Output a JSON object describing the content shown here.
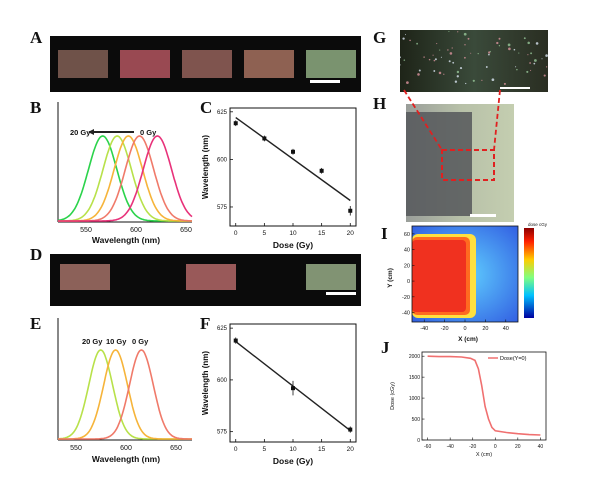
{
  "panel_labels": {
    "A": "A",
    "B": "B",
    "C": "C",
    "D": "D",
    "E": "E",
    "F": "F",
    "G": "G",
    "H": "H",
    "I": "I",
    "J": "J"
  },
  "colors": {
    "strip": "#0b0b0b",
    "fit_line": "#222222",
    "red_roi": "#e02020",
    "jet_hot": "#f0311f",
    "jet_cold": "#2233d8"
  },
  "strip_A": {
    "film_colors": [
      "#7a5a50",
      "#a8505a",
      "#8c5c55",
      "#9c6a5a",
      "#86a27a"
    ],
    "has_scale_bar": true
  },
  "strip_D": {
    "film_colors": [
      "#9a6a62",
      "#a86262",
      "#8ea27e"
    ],
    "has_scale_bar": true
  },
  "panel_B": {
    "arrow_start": "20 Gy",
    "arrow_end": "0 Gy",
    "xlabel": "Wavelength (nm)",
    "xticks": [
      "550",
      "600",
      "650"
    ]
  },
  "panel_E": {
    "annotations": [
      "20 Gy",
      "10 Gy",
      "0 Gy"
    ],
    "xlabel": "Wavelength (nm)",
    "xticks": [
      "550",
      "600",
      "650"
    ]
  },
  "panel_I": {
    "ylabel": "Y (cm)",
    "xlabel": "X (cm)",
    "yticks": [
      "60",
      "40",
      "20",
      "0",
      "-20",
      "-40"
    ],
    "xticks": [
      "-40",
      "-20",
      "0",
      "20",
      "40"
    ],
    "colorbar_title": "dose cGy"
  },
  "panel_J": {
    "legend": "Dose(Y=0)",
    "ylabel": "Dose (cGy)",
    "xlabel": "X (cm)",
    "yticks": [
      "2000",
      "1500",
      "1000",
      "500",
      "0"
    ],
    "xticks": [
      "-60",
      "-40",
      "-20",
      "0",
      "20",
      "40"
    ]
  },
  "chart_data": [
    {
      "id": "B",
      "type": "line",
      "xlabel": "Wavelength (nm)",
      "xlim": [
        530,
        650
      ],
      "series": [
        {
          "color": "#2bd34b",
          "peak": 570,
          "width": 18
        },
        {
          "color": "#b8e14a",
          "peak": 583,
          "width": 18
        },
        {
          "color": "#f6b43a",
          "peak": 593,
          "width": 18
        },
        {
          "color": "#f07a6a",
          "peak": 603,
          "width": 18
        },
        {
          "color": "#e8327a",
          "peak": 619,
          "width": 18
        }
      ]
    },
    {
      "id": "C",
      "type": "scatter",
      "ylabel": "Wavelength (nm)",
      "xlabel": "Dose (Gy)",
      "xlim": [
        -1,
        21
      ],
      "ylim": [
        565,
        627
      ],
      "yticks": [
        "625",
        "600",
        "575"
      ],
      "xticks": [
        "0",
        "5",
        "10",
        "15",
        "20"
      ],
      "x": [
        0,
        5,
        10,
        15,
        20
      ],
      "y": [
        619,
        611,
        604,
        594,
        573
      ],
      "yerr": [
        1.5,
        1.5,
        1.5,
        1.5,
        2.5
      ]
    },
    {
      "id": "E",
      "type": "line",
      "xlabel": "Wavelength (nm)",
      "xlim": [
        535,
        670
      ],
      "series": [
        {
          "color": "#b8e14a",
          "peak": 578,
          "width": 17
        },
        {
          "color": "#f6b43a",
          "peak": 593,
          "width": 17
        },
        {
          "color": "#f07a6a",
          "peak": 619,
          "width": 17
        }
      ]
    },
    {
      "id": "F",
      "type": "scatter",
      "ylabel": "Wavelength (nm)",
      "xlabel": "Dose (Gy)",
      "xlim": [
        -1,
        21
      ],
      "ylim": [
        570,
        627
      ],
      "yticks": [
        "625",
        "600",
        "575"
      ],
      "xticks": [
        "0",
        "5",
        "10",
        "15",
        "20"
      ],
      "x": [
        0,
        10,
        20
      ],
      "y": [
        619,
        596,
        576
      ],
      "yerr": [
        1.5,
        3.5,
        1.5
      ]
    },
    {
      "id": "J",
      "type": "line",
      "xlabel": "X (cm)",
      "ylabel": "Dose (cGy)",
      "xlim": [
        -65,
        45
      ],
      "ylim": [
        0,
        2100
      ],
      "x": [
        -60,
        -50,
        -40,
        -30,
        -22,
        -18,
        -15,
        -12,
        -9,
        -6,
        -3,
        0,
        10,
        20,
        30,
        40
      ],
      "y": [
        2000,
        1990,
        1990,
        1980,
        1950,
        1900,
        1700,
        1300,
        800,
        500,
        300,
        220,
        180,
        150,
        130,
        120
      ]
    }
  ]
}
